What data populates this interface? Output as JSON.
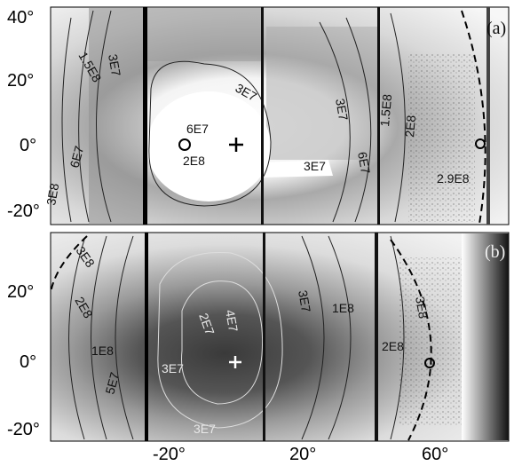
{
  "panel_a": {
    "tag": "(a)",
    "y_ticks": [
      "40°",
      "20°",
      "0°",
      "-20°"
    ],
    "contour_labels": [
      "1.5E8",
      "3E7",
      "3E7",
      "6E7",
      "6E7",
      "2E8",
      "3E7",
      "3E7",
      "6E7",
      "3E8",
      "1.5E8",
      "2E8",
      "2.9E8"
    ]
  },
  "panel_b": {
    "tag": "(b)",
    "y_ticks": [
      "20°",
      "0°",
      "-20°"
    ],
    "contour_labels": [
      "3E8",
      "2E8",
      "1E8",
      "5E7",
      "2E7",
      "4E7",
      "3E7",
      "3E7",
      "3E7",
      "1E8",
      "2E8",
      "3E8"
    ]
  },
  "x_ticks": [
    "-20°",
    "20°",
    "60°"
  ],
  "colors": {
    "background": "#ffffff",
    "contour": "#222222",
    "contour_light": "#dddddd"
  }
}
